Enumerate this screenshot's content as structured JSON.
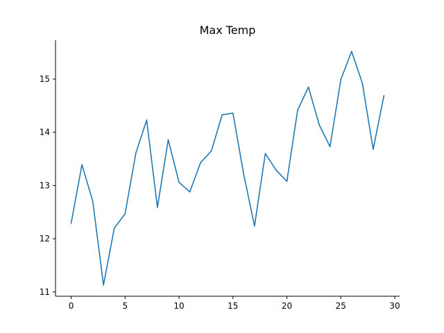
{
  "chart_data": {
    "type": "line",
    "title": "Max Temp",
    "xlabel": "",
    "ylabel": "",
    "xlim": [
      -1.45,
      30.45
    ],
    "ylim": [
      10.92,
      15.73
    ],
    "xticks": [
      0,
      5,
      10,
      15,
      20,
      25,
      30
    ],
    "xtick_labels": [
      "0",
      "5",
      "10",
      "15",
      "20",
      "25",
      "30"
    ],
    "yticks": [
      11,
      12,
      13,
      14,
      15
    ],
    "ytick_labels": [
      "11",
      "12",
      "13",
      "14",
      "15"
    ],
    "grid": false,
    "spines": [
      "left",
      "bottom"
    ],
    "series": [
      {
        "color": "#1f77b4",
        "x": [
          0,
          1,
          2,
          3,
          4,
          5,
          6,
          7,
          8,
          9,
          10,
          11,
          12,
          13,
          14,
          15,
          16,
          17,
          18,
          19,
          20,
          21,
          22,
          23,
          24,
          25,
          26,
          27,
          28,
          29
        ],
        "y": [
          12.29,
          13.39,
          12.71,
          11.13,
          12.2,
          12.47,
          13.61,
          14.23,
          12.59,
          13.86,
          13.06,
          12.88,
          13.43,
          13.65,
          14.33,
          14.36,
          13.21,
          12.24,
          13.6,
          13.29,
          13.08,
          14.42,
          14.85,
          14.14,
          13.73,
          14.99,
          15.52,
          14.92,
          13.68,
          14.69
        ]
      }
    ]
  }
}
